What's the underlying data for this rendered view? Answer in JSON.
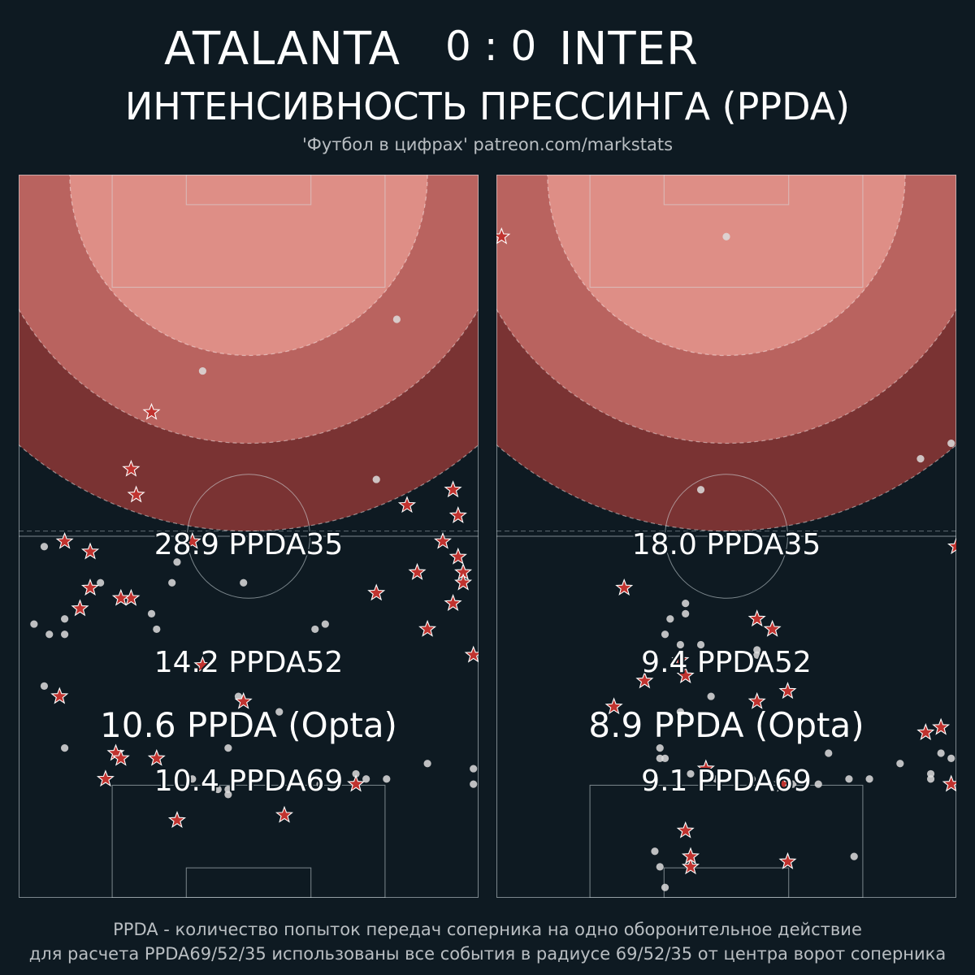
{
  "header": {
    "home_team": "ATALANTA",
    "score": "0 : 0",
    "away_team": "INTER",
    "subtitle": "ИНТЕНСИВНОСТЬ ПРЕССИНГА (PPDA)",
    "credit": "'Футбол в цифрах' patreon.com/markstats"
  },
  "colors": {
    "background": "#0e1a22",
    "zone35": "#de8e86",
    "zone52": "#b9635f",
    "zone69": "#7a3333",
    "star": "#c0332f",
    "dot": "#dddddd"
  },
  "chart_data": [
    {
      "type": "scatter",
      "team": "ATALANTA",
      "zones": [
        {
          "radius": 35,
          "value": 28.9,
          "label": "28.9 PPDA35"
        },
        {
          "radius": 52,
          "value": 14.2,
          "label": "14.2 PPDA52"
        },
        {
          "radius": 69,
          "value": 10.4,
          "label": "10.4 PPDA69"
        }
      ],
      "opta": {
        "value": 10.6,
        "label": "10.6 PPDA (Opta)"
      },
      "defensive_actions": [
        [
          -19,
          -46
        ],
        [
          -22,
          -62
        ],
        [
          -11,
          -71
        ],
        [
          -31,
          -73
        ],
        [
          -9,
          -95
        ],
        [
          -36,
          -71
        ],
        [
          -23,
          -57
        ],
        [
          -31,
          -80
        ],
        [
          -23,
          -82
        ],
        [
          -25,
          -82
        ],
        [
          33,
          -77
        ],
        [
          25,
          -81
        ],
        [
          35,
          -88
        ],
        [
          40,
          -61
        ],
        [
          31,
          -64
        ],
        [
          40,
          -83
        ],
        [
          44,
          -93
        ],
        [
          41,
          -66
        ],
        [
          38,
          -71
        ],
        [
          41,
          -74
        ],
        [
          42,
          -77
        ],
        [
          42,
          -79
        ],
        [
          -33,
          -84
        ],
        [
          -37,
          -101
        ],
        [
          -26,
          -112
        ],
        [
          -1,
          -102
        ],
        [
          -25,
          -113
        ],
        [
          -18,
          -113
        ],
        [
          -28,
          -117
        ],
        [
          21,
          -118
        ],
        [
          -14,
          -125
        ],
        [
          7,
          -124
        ]
      ],
      "passes": [
        [
          29,
          -28
        ],
        [
          25,
          -59
        ],
        [
          -9,
          -38
        ],
        [
          -40,
          -72
        ],
        [
          -29,
          -79
        ],
        [
          -15,
          -79
        ],
        [
          -14,
          -75
        ],
        [
          -1,
          -79
        ],
        [
          -19,
          -85
        ],
        [
          -18,
          -88
        ],
        [
          -36,
          -86
        ],
        [
          -36,
          -89
        ],
        [
          -42,
          -87
        ],
        [
          -39,
          -89
        ],
        [
          -40,
          -99
        ],
        [
          -2,
          -101
        ],
        [
          6,
          -104
        ],
        [
          -4,
          -111
        ],
        [
          -11,
          -117
        ],
        [
          -6,
          -119
        ],
        [
          -4,
          -119
        ],
        [
          -4,
          -120
        ],
        [
          14,
          -118
        ],
        [
          21,
          -116
        ],
        [
          23,
          -117
        ],
        [
          27,
          -117
        ],
        [
          35,
          -114
        ],
        [
          15,
          -87
        ],
        [
          13,
          -88
        ],
        [
          -36,
          -111
        ],
        [
          44,
          -118
        ],
        [
          44,
          -115
        ]
      ]
    },
    {
      "type": "scatter",
      "team": "INTER",
      "zones": [
        {
          "radius": 35,
          "value": 18.0,
          "label": "18.0 PPDA35"
        },
        {
          "radius": 52,
          "value": 9.4,
          "label": "9.4 PPDA52"
        },
        {
          "radius": 69,
          "value": 9.1,
          "label": "9.1 PPDA69"
        }
      ],
      "opta": {
        "value": 8.9,
        "label": "8.9 PPDA (Opta)"
      },
      "defensive_actions": [
        [
          -44,
          -12
        ],
        [
          45,
          -72
        ],
        [
          -7,
          -134
        ],
        [
          -7,
          -132
        ],
        [
          12,
          -133
        ],
        [
          -20,
          -80
        ],
        [
          6,
          -86
        ],
        [
          9,
          -88
        ],
        [
          -8,
          -97
        ],
        [
          -9,
          -94
        ],
        [
          6,
          -102
        ],
        [
          12,
          -100
        ],
        [
          -22,
          -103
        ],
        [
          -4,
          -115
        ],
        [
          11,
          -118
        ],
        [
          39,
          -108
        ],
        [
          42,
          -107
        ],
        [
          44,
          -118
        ],
        [
          -8,
          -127
        ],
        [
          -16,
          -98
        ]
      ],
      "passes": [
        [
          0,
          -12
        ],
        [
          44,
          -52
        ],
        [
          38,
          -55
        ],
        [
          -14,
          -131
        ],
        [
          -5,
          -61
        ],
        [
          25,
          -132
        ],
        [
          -12,
          -138
        ],
        [
          -9,
          -91
        ],
        [
          -13,
          -111
        ],
        [
          -8,
          -85
        ],
        [
          -13,
          -134
        ],
        [
          -8,
          -83
        ],
        [
          -11,
          -86
        ],
        [
          -12,
          -89
        ],
        [
          -5,
          -91
        ],
        [
          6,
          -92
        ],
        [
          6,
          -93
        ],
        [
          -3,
          -101
        ],
        [
          -9,
          -104
        ],
        [
          -12,
          -113
        ],
        [
          -13,
          -113
        ],
        [
          -7,
          -116
        ],
        [
          -2,
          -117
        ],
        [
          5,
          -117
        ],
        [
          13,
          -118
        ],
        [
          18,
          -118
        ],
        [
          20,
          -112
        ],
        [
          24,
          -117
        ],
        [
          28,
          -117
        ],
        [
          34,
          -114
        ],
        [
          40,
          -116
        ],
        [
          42,
          -112
        ],
        [
          44,
          -113
        ],
        [
          40,
          -117
        ]
      ]
    }
  ],
  "footer": {
    "line1": "PPDA - количество попыток передач соперника на одно оборонительное действие",
    "line2": "для расчета PPDA69/52/35 использованы все события в радиусе 69/52/35 от центра ворот соперника"
  }
}
